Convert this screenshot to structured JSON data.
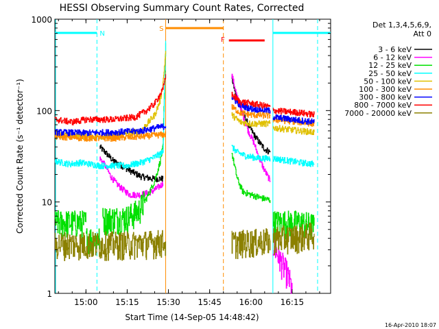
{
  "chart_data": {
    "type": "line",
    "title": "HESSI Observing Summary Count Rates, Corrected",
    "xlabel": "Start Time (14-Sep-05 14:48:42)",
    "ylabel": "Corrected Count Rate (s⁻¹ detector⁻¹)",
    "y_scale": "log",
    "ylim": [
      1,
      1000
    ],
    "xlim": [
      "14:48:42",
      "16:29:00"
    ],
    "x_ticks": [
      "15:00",
      "15:15",
      "15:30",
      "15:45",
      "16:00",
      "16:15"
    ],
    "y_ticks": [
      "1",
      "10",
      "100",
      "1000"
    ],
    "legend_header": [
      "Det 1,3,4,5,6,9,",
      "Att 0"
    ],
    "legend_position": "right",
    "footer": "16-Apr-2010 18:07",
    "series": [
      {
        "name": "3 - 6 keV",
        "color": "#000000",
        "segments": [
          [
            [
              "14:48:42",
              0
            ],
            [
              "14:49",
              0
            ]
          ],
          [
            [
              "15:05",
              40
            ],
            [
              "15:07",
              35
            ],
            [
              "15:10",
              28
            ],
            [
              "15:13",
              25
            ],
            [
              "15:16",
              22
            ],
            [
              "15:20",
              19
            ],
            [
              "15:24",
              18
            ],
            [
              "15:28",
              18
            ]
          ],
          [
            [
              "15:53",
              230
            ],
            [
              "15:55",
              130
            ],
            [
              "15:57",
              95
            ],
            [
              "15:59",
              70
            ],
            [
              "16:01",
              55
            ],
            [
              "16:03",
              45
            ],
            [
              "16:05",
              38
            ],
            [
              "16:07",
              35
            ]
          ]
        ]
      },
      {
        "name": "6 - 12 keV",
        "color": "#ff00ff",
        "segments": [
          [
            [
              "15:05",
              30
            ],
            [
              "15:07",
              25
            ],
            [
              "15:09",
              19
            ],
            [
              "15:11",
              16
            ],
            [
              "15:13",
              14
            ],
            [
              "15:16",
              12
            ],
            [
              "15:20",
              12
            ],
            [
              "15:24",
              13
            ],
            [
              "15:27",
              15
            ],
            [
              "15:28",
              16
            ]
          ],
          [
            [
              "15:53",
              250
            ],
            [
              "15:55",
              140
            ],
            [
              "15:57",
              90
            ],
            [
              "15:59",
              60
            ],
            [
              "16:01",
              45
            ],
            [
              "16:03",
              30
            ],
            [
              "16:05",
              22
            ],
            [
              "16:07",
              17
            ]
          ],
          [
            [
              "16:08",
              3.5
            ],
            [
              "16:11",
              2.2
            ],
            [
              "16:13",
              1.7
            ],
            [
              "16:15",
              1.1
            ]
          ]
        ]
      },
      {
        "name": "12 - 25 keV",
        "color": "#00e000",
        "segments": [
          [
            [
              "14:48:42",
              6
            ],
            [
              "15:00",
              6
            ]
          ],
          [
            [
              "15:00",
              4
            ],
            [
              "15:05",
              4
            ]
          ],
          [
            [
              "15:06",
              6.5
            ],
            [
              "15:15",
              6.8
            ],
            [
              "15:19",
              8
            ],
            [
              "15:22",
              11
            ],
            [
              "15:25",
              17
            ],
            [
              "15:27",
              28
            ],
            [
              "15:28",
              40
            ],
            [
              "15:29",
              550
            ]
          ],
          [
            [
              "15:53",
              35
            ],
            [
              "15:55",
              18
            ],
            [
              "15:57",
              13
            ],
            [
              "16:00",
              12
            ],
            [
              "16:04",
              11
            ],
            [
              "16:07",
              10.5
            ]
          ],
          [
            [
              "16:08",
              6
            ],
            [
              "16:18",
              6
            ],
            [
              "16:23",
              5.5
            ]
          ]
        ]
      },
      {
        "name": "25 - 50 keV",
        "color": "#00ffff",
        "segments": [
          [
            [
              "14:48:42",
              28
            ],
            [
              "14:54",
              26
            ],
            [
              "14:58",
              27
            ],
            [
              "15:05",
              25
            ],
            [
              "15:15",
              25
            ],
            [
              "15:20",
              27
            ],
            [
              "15:24",
              30
            ],
            [
              "15:28",
              35
            ],
            [
              "15:29",
              580
            ]
          ],
          [
            [
              "15:53",
              40
            ],
            [
              "15:55",
              35
            ],
            [
              "15:58",
              32
            ],
            [
              "16:03",
              30
            ],
            [
              "16:07",
              30
            ]
          ],
          [
            [
              "16:08",
              30
            ],
            [
              "16:18",
              27
            ],
            [
              "16:23",
              26
            ]
          ]
        ]
      },
      {
        "name": "50 - 100 keV",
        "color": "#e0c000",
        "segments": [
          [
            [
              "14:48:42",
              55
            ],
            [
              "15:00",
              52
            ],
            [
              "15:10",
              53
            ],
            [
              "15:20",
              60
            ],
            [
              "15:25",
              90
            ],
            [
              "15:27",
              130
            ],
            [
              "15:28",
              200
            ],
            [
              "15:29",
              450
            ]
          ],
          [
            [
              "15:53",
              90
            ],
            [
              "15:56",
              75
            ],
            [
              "16:00",
              72
            ],
            [
              "16:07",
              72
            ]
          ],
          [
            [
              "16:08",
              65
            ],
            [
              "16:18",
              60
            ],
            [
              "16:23",
              58
            ]
          ]
        ]
      },
      {
        "name": "100 - 300 keV",
        "color": "#ff8c00",
        "segments": [
          [
            [
              "14:48:42",
              52
            ],
            [
              "15:00",
              50
            ],
            [
              "15:10",
              50
            ],
            [
              "15:20",
              52
            ],
            [
              "15:29",
              55
            ]
          ],
          [
            [
              "15:53",
              110
            ],
            [
              "15:56",
              95
            ],
            [
              "16:00",
              90
            ],
            [
              "16:07",
              88
            ]
          ],
          [
            [
              "16:08",
              80
            ],
            [
              "16:18",
              75
            ],
            [
              "16:23",
              72
            ]
          ]
        ]
      },
      {
        "name": "300 - 800 keV",
        "color": "#0000ff",
        "segments": [
          [
            [
              "14:48:42",
              58
            ],
            [
              "15:00",
              57
            ],
            [
              "15:10",
              58
            ],
            [
              "15:20",
              60
            ],
            [
              "15:29",
              68
            ]
          ],
          [
            [
              "15:53",
              140
            ],
            [
              "15:56",
              115
            ],
            [
              "16:00",
              105
            ],
            [
              "16:07",
              100
            ]
          ],
          [
            [
              "16:08",
              85
            ],
            [
              "16:18",
              78
            ],
            [
              "16:23",
              75
            ]
          ]
        ]
      },
      {
        "name": "800 - 7000 keV",
        "color": "#ff0000",
        "segments": [
          [
            [
              "14:48:42",
              80
            ],
            [
              "14:55",
              75
            ],
            [
              "15:00",
              80
            ],
            [
              "15:10",
              80
            ],
            [
              "15:18",
              85
            ],
            [
              "15:22",
              100
            ],
            [
              "15:25",
              120
            ],
            [
              "15:28",
              170
            ],
            [
              "15:29",
              250
            ]
          ],
          [
            [
              "15:53",
              150
            ],
            [
              "15:56",
              125
            ],
            [
              "16:00",
              120
            ],
            [
              "16:07",
              110
            ]
          ],
          [
            [
              "16:08",
              100
            ],
            [
              "16:18",
              95
            ],
            [
              "16:23",
              90
            ]
          ]
        ]
      },
      {
        "name": "7000 - 20000 keV",
        "color": "#8b8000",
        "segments": [
          [
            [
              "14:48:42",
              3.5
            ],
            [
              "15:05",
              3.5
            ],
            [
              "15:15",
              3.5
            ],
            [
              "15:29",
              3.7
            ]
          ],
          [
            [
              "15:53",
              3.6
            ],
            [
              "16:07",
              3.8
            ]
          ],
          [
            [
              "16:08",
              4
            ],
            [
              "16:18",
              4.2
            ],
            [
              "16:23",
              4.5
            ]
          ]
        ]
      }
    ],
    "annotations": [
      {
        "label": "N",
        "kind": "night",
        "color": "#00ffff",
        "from": "14:48:42",
        "to": "15:04"
      },
      {
        "label": "N",
        "kind": "night",
        "color": "#00ffff",
        "from": "16:08",
        "to": "16:29"
      },
      {
        "label": "S",
        "kind": "saa",
        "color": "#ff8c00",
        "from": "15:29",
        "to": "15:50"
      },
      {
        "label": "F",
        "kind": "flare",
        "color": "#ff0000",
        "from": "15:52",
        "to": "16:05"
      }
    ]
  }
}
